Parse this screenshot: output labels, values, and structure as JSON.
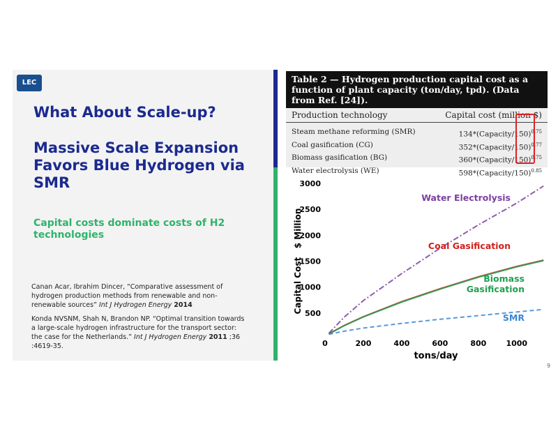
{
  "logo": "LEC",
  "heading": "What About Scale-up?",
  "title": "Massive Scale Expansion Favors Blue Hydrogen via SMR",
  "subtitle": "Capital costs dominate costs of H2 technologies",
  "references": [
    [
      {
        "text": "Canan Acar, Ibrahim Dincer, “Comparative assessment of hydrogen production methods from renewable and non-renewable sources” ",
        "style": "normal"
      },
      {
        "text": "Int J Hydrogen Energy ",
        "style": "italic"
      },
      {
        "text": "2014",
        "style": "bold"
      }
    ],
    [
      {
        "text": "Konda NVSNM, Shah N, Brandon NP. “Optimal transition towards a large-scale hydrogen infrastructure for the transport sector: the case for the Netherlands.” ",
        "style": "normal"
      },
      {
        "text": "Int J Hydrogen Energy ",
        "style": "italic"
      },
      {
        "text": "2011",
        "style": "bold"
      },
      {
        "text": " ;36 :4619-35.",
        "style": "normal"
      }
    ]
  ],
  "table": {
    "caption": "Table 2 — Hydrogen production capital cost as a function of plant capacity (ton/day, tpd). (Data from Ref. [24]).",
    "header": [
      "Production technology",
      "Capital cost (million $)"
    ],
    "rows": [
      [
        "Steam methane reforming (SMR)",
        "134*(Capacity/150)",
        "0.75"
      ],
      [
        "Coal gasification (CG)",
        "352*(Capacity/150)",
        "0.77"
      ],
      [
        "Biomass gasification (BG)",
        "360*(Capacity/150)",
        "0.75"
      ],
      [
        "Water electrolysis (WE)",
        "598*(Capacity/150)",
        "0.85"
      ]
    ]
  },
  "chart_data": {
    "type": "line",
    "x_label": "tons/day",
    "y_label": "Capital Cost   $ Million",
    "x": [
      20,
      100,
      200,
      400,
      600,
      800,
      1000,
      1140
    ],
    "series": [
      {
        "name": "Water Electrolysis",
        "color": "#7b3fa0",
        "dash": "8 3 2 3",
        "values": [
          110,
          420,
          740,
          1260,
          1750,
          2200,
          2620,
          2950
        ]
      },
      {
        "name": "Coal Gasification",
        "color": "#d0201c",
        "dash": "none",
        "values": [
          100,
          260,
          430,
          720,
          970,
          1200,
          1400,
          1520
        ]
      },
      {
        "name": "Biomass Gasification",
        "color": "#20a050",
        "dash": "none",
        "values": [
          95,
          255,
          425,
          710,
          960,
          1190,
          1390,
          1510
        ]
      },
      {
        "name": "SMR",
        "color": "#3a86d4",
        "dash": "6 4",
        "values": [
          90,
          150,
          210,
          300,
          380,
          450,
          520,
          570
        ]
      }
    ],
    "xlim": [
      0,
      1150
    ],
    "ylim": [
      0,
      3000
    ],
    "xticks": [
      0,
      200,
      400,
      600,
      800,
      1000
    ],
    "yticks": [
      500,
      1000,
      1500,
      2000,
      2500,
      3000
    ]
  },
  "page_number": "9"
}
